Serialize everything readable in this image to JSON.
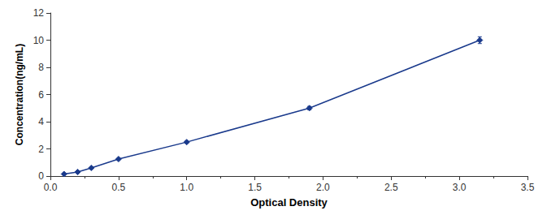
{
  "chart_data": {
    "type": "line",
    "xlabel": "Optical Density",
    "ylabel": "Concentration(ng/mL)",
    "x": [
      0.1,
      0.2,
      0.3,
      0.5,
      1.0,
      1.9,
      3.15
    ],
    "values": [
      0.15,
      0.3,
      0.6,
      1.25,
      2.5,
      5.0,
      10.0
    ],
    "errors": [
      0.00375,
      0.0075,
      0.015,
      0.03125,
      0.0625,
      0.125,
      0.25
    ],
    "color": "#1a3a8c",
    "marker": "diamond",
    "line_style": "solid",
    "xlim": [
      0,
      3.5
    ],
    "ylim": [
      0,
      12
    ],
    "xticks": [
      {
        "value": 0,
        "label": "0.0"
      },
      0.5,
      {
        "value": 1.0,
        "label": "1.0"
      },
      1.5,
      {
        "value": 2.0,
        "label": "2.0"
      },
      2.5,
      {
        "value": 3.0,
        "label": "3.0"
      },
      3.5
    ],
    "yticks": [
      0,
      2,
      4,
      6,
      8,
      10,
      12
    ],
    "grid": false
  }
}
